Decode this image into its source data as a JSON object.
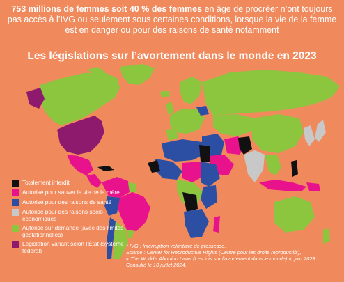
{
  "header": {
    "intro_bold": "753 millions de femmes soit 40 % des femmes",
    "intro_rest": " en âge de procréer n’ont toujours pas accès à l’IVG ou seulement sous certaines conditions, lorsque la vie de la femme est en danger ou pour des raisons de santé notamment",
    "title": "Les législations sur l’avortement dans le monde en 2023"
  },
  "colors": {
    "background": "#F08A5D",
    "banned": "#111111",
    "life": "#E8128C",
    "health": "#2C4FA3",
    "socio": "#C8C8C8",
    "demand": "#8CC63F",
    "federal": "#8E1A6E"
  },
  "legend": [
    {
      "key": "banned",
      "label": "Totalement interdit"
    },
    {
      "key": "life",
      "label": "Autorisé pour sauver la vie de la mère"
    },
    {
      "key": "health",
      "label": "Autorisé pour des raisons de santé"
    },
    {
      "key": "socio",
      "label": "Autorisé pour des raisons socio-économiques"
    },
    {
      "key": "demand",
      "label": "Autorisé sur demande (avec des limites gestationnelles)"
    },
    {
      "key": "federal",
      "label": "Législation variant selon l’État (système fédéral)"
    }
  ],
  "source": {
    "line1": "* IVG : Interruption volontaire de grossesse.",
    "line2": "Source : Center for Reproductive Rights (Centre pour les droits reproductifs),",
    "line3": "« The World’s Abortion Laws (Les lois sur l’avortement dans le monde) », juin 2023.",
    "line4": "Consulté le 10 juillet 2024."
  }
}
